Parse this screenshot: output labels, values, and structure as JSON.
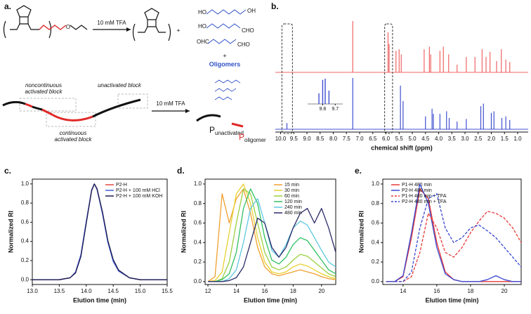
{
  "panel_a": {
    "label": "a.",
    "reagent_top": "10 mM TFA",
    "plus_1": "+",
    "monomer_o": "O",
    "products": [
      {
        "left": "HO",
        "right": "OH"
      },
      {
        "left": "HO",
        "right": "CHO"
      },
      {
        "left": "OHC",
        "right": "CHO"
      }
    ],
    "plus_2": "+",
    "oligomers": "Oligomers",
    "noncontinuous": [
      "noncontinuous",
      "activated block"
    ],
    "unactivated": "unactivated block",
    "continuous": [
      "continuous",
      "activated block"
    ],
    "reagent_bottom": "10 mM TFA",
    "p_unactivated": {
      "symbol": "P",
      "subscript": "unactivated"
    },
    "p_oligomer": {
      "symbol": "P",
      "subscript": "oligomer"
    }
  },
  "chart_data": [
    {
      "type": "spectrum",
      "label": "b.",
      "xlabel": "chemical shift (ppm)",
      "xlim": [
        10.2,
        0.6
      ],
      "xticks": [
        {
          "value": 10,
          "label": "10.0"
        },
        9.5,
        {
          "value": 9,
          "label": "9.0"
        },
        8.5,
        {
          "value": 8,
          "label": "8.0"
        },
        7.5,
        {
          "value": 7,
          "label": "7.0"
        },
        6.5,
        {
          "value": 6,
          "label": "6.0"
        },
        5.5,
        {
          "value": 5,
          "label": "5.0"
        },
        4.5,
        {
          "value": 4,
          "label": "4.0"
        },
        3.5,
        {
          "value": 3,
          "label": "3.0"
        },
        2.5,
        {
          "value": 2,
          "label": "2.0"
        },
        1.5,
        {
          "value": 1,
          "label": "1.0"
        }
      ],
      "ylim": [
        0,
        1
      ],
      "series": [
        {
          "color": "#f06464",
          "x": [
            7.26,
            5.92,
            5.88,
            5.62,
            5.5,
            5.42,
            4.55,
            4.35,
            4.3,
            3.95,
            3.82,
            3.62,
            3.3,
            2.95,
            2.62,
            2.35,
            2.2,
            2.05,
            1.8,
            1.62,
            1.45,
            1.3
          ],
          "values": [
            1.0,
            0.78,
            0.55,
            0.42,
            0.45,
            0.35,
            0.45,
            0.5,
            0.35,
            0.42,
            0.5,
            0.35,
            0.15,
            0.3,
            0.3,
            0.45,
            0.3,
            0.4,
            0.22,
            0.45,
            0.25,
            0.2
          ]
        },
        {
          "color": "#4050d0",
          "x": [
            9.76,
            7.26,
            5.45,
            5.35,
            4.5,
            4.25,
            4.2,
            3.95,
            3.7,
            3.6,
            3.3,
            2.95,
            2.4,
            2.3,
            2.0,
            1.9,
            1.6,
            1.45,
            1.3
          ],
          "values": [
            0.12,
            1.0,
            0.85,
            0.55,
            0.25,
            0.4,
            0.3,
            0.3,
            0.35,
            0.22,
            0.15,
            0.2,
            0.45,
            0.5,
            0.32,
            0.35,
            0.22,
            0.25,
            0.18
          ]
        }
      ],
      "inset": {
        "xlim": [
          9.92,
          9.64
        ],
        "xticks": [
          9.8,
          9.7
        ],
        "ylim": [
          0,
          1
        ],
        "color": "#4050d0",
        "x": [
          9.83,
          9.8,
          9.78,
          9.75
        ],
        "values": [
          0.4,
          0.9,
          0.95,
          0.5
        ]
      }
    },
    {
      "type": "line",
      "label": "c.",
      "xlabel": "Elution time (min)",
      "ylabel": "Normalized RI",
      "xlim": [
        13.0,
        15.5
      ],
      "xticks": [
        {
          "value": 13,
          "label": "13.0"
        },
        13.5,
        {
          "value": 14,
          "label": "14.0"
        },
        14.5,
        {
          "value": 15,
          "label": "15.0"
        },
        15.5
      ],
      "ylim": [
        -0.05,
        1.05
      ],
      "yticks": [
        {
          "value": 0,
          "label": "0.0"
        },
        0.2,
        0.4,
        0.6,
        0.8,
        {
          "value": 1,
          "label": "1.0"
        }
      ],
      "legend": "upper right",
      "x": [
        13.0,
        13.5,
        13.7,
        13.8,
        13.9,
        14.0,
        14.1,
        14.15,
        14.2,
        14.3,
        14.4,
        14.5,
        14.6,
        14.8,
        15.0,
        15.5
      ],
      "series": [
        {
          "name": "P2-H",
          "color": "#e84848",
          "values": [
            0,
            0,
            0.02,
            0.07,
            0.25,
            0.6,
            0.93,
            1.0,
            0.95,
            0.7,
            0.4,
            0.2,
            0.09,
            0.02,
            0,
            0
          ]
        },
        {
          "name": "P2-H + 100 mM HCl",
          "color": "#4060e0",
          "values": [
            0,
            0,
            0.02,
            0.08,
            0.26,
            0.61,
            0.94,
            1.0,
            0.94,
            0.69,
            0.39,
            0.19,
            0.09,
            0.02,
            0,
            0
          ]
        },
        {
          "name": "P2-H + 100 mM KOH",
          "color": "#1c1c50",
          "values": [
            0,
            0,
            0.02,
            0.07,
            0.24,
            0.59,
            0.93,
            1.0,
            0.95,
            0.71,
            0.41,
            0.21,
            0.1,
            0.02,
            0,
            0
          ]
        }
      ]
    },
    {
      "type": "line",
      "label": "d.",
      "xlabel": "Elution time (min)",
      "ylabel": "Normalized RI",
      "xlim": [
        11.8,
        21
      ],
      "xticks": [
        12,
        14,
        16,
        18,
        20
      ],
      "ylim": [
        -0.03,
        1.05
      ],
      "yticks": [
        {
          "value": 0,
          "label": "0.0"
        },
        0.2,
        0.4,
        0.6,
        0.8,
        {
          "value": 1,
          "label": "1.0"
        }
      ],
      "legend": "upper right",
      "x": [
        12,
        12.5,
        13,
        13.5,
        14,
        14.5,
        15,
        15.5,
        16,
        16.5,
        17,
        17.5,
        18,
        18.5,
        19,
        19.5,
        20,
        20.5,
        21
      ],
      "series": [
        {
          "name": "15 min",
          "color": "#f0a030",
          "values": [
            0,
            0.05,
            0.9,
            0.6,
            0.85,
            0.95,
            0.7,
            0.35,
            0.15,
            0.08,
            0.06,
            0.08,
            0.1,
            0.12,
            0.1,
            0.08,
            0.05,
            0.03,
            0.02
          ]
        },
        {
          "name": "30 min",
          "color": "#e8d030",
          "values": [
            0,
            0.01,
            0.1,
            0.5,
            0.9,
            1.0,
            0.8,
            0.45,
            0.2,
            0.1,
            0.08,
            0.1,
            0.15,
            0.18,
            0.16,
            0.12,
            0.08,
            0.05,
            0.03
          ]
        },
        {
          "name": "60 min",
          "color": "#9ad040",
          "values": [
            0,
            0,
            0.03,
            0.2,
            0.6,
            0.95,
            0.9,
            0.6,
            0.3,
            0.15,
            0.12,
            0.15,
            0.22,
            0.28,
            0.26,
            0.2,
            0.14,
            0.08,
            0.05
          ]
        },
        {
          "name": "120 min",
          "color": "#30c060",
          "values": [
            0,
            0,
            0.02,
            0.08,
            0.3,
            0.75,
            0.95,
            0.8,
            0.45,
            0.22,
            0.18,
            0.25,
            0.38,
            0.45,
            0.42,
            0.32,
            0.22,
            0.12,
            0.08
          ]
        },
        {
          "name": "240 min",
          "color": "#60c8e0",
          "values": [
            0,
            0,
            0,
            0.03,
            0.12,
            0.4,
            0.75,
            0.85,
            0.6,
            0.32,
            0.25,
            0.38,
            0.55,
            0.62,
            0.58,
            0.45,
            0.32,
            0.2,
            0.15
          ]
        },
        {
          "name": "480 min",
          "color": "#2a2a68",
          "values": [
            0,
            0,
            0,
            0.01,
            0.04,
            0.15,
            0.4,
            0.65,
            0.6,
            0.35,
            0.25,
            0.35,
            0.55,
            0.7,
            0.75,
            0.6,
            0.75,
            0.55,
            0.3
          ]
        }
      ]
    },
    {
      "type": "line",
      "label": "e.",
      "xlabel": "Elution time (min)",
      "ylabel": "Normalized RI",
      "xlim": [
        12.8,
        21
      ],
      "xticks": [
        14,
        16,
        18,
        20
      ],
      "ylim": [
        -0.03,
        1.05
      ],
      "yticks": [
        {
          "value": 0,
          "label": "0.0"
        },
        0.2,
        0.4,
        0.6,
        0.8,
        {
          "value": 1,
          "label": "1.0"
        }
      ],
      "legend": "upper left",
      "x": [
        13,
        13.5,
        14,
        14.5,
        15,
        15.5,
        16,
        16.5,
        17,
        17.5,
        18,
        18.5,
        19,
        19.5,
        20,
        20.5,
        21
      ],
      "series": [
        {
          "name": "P1-H 480 min",
          "color": "#e83838",
          "dash": false,
          "values": [
            0,
            0,
            0.05,
            0.45,
            0.95,
            0.85,
            0.4,
            0.1,
            0.02,
            0,
            0,
            0,
            0,
            0,
            0,
            0,
            0
          ]
        },
        {
          "name": "P2-H 480 min",
          "color": "#3848d0",
          "dash": false,
          "values": [
            0,
            0,
            0.06,
            0.5,
            1.0,
            0.8,
            0.35,
            0.08,
            0.02,
            0,
            0,
            0,
            0.02,
            0.06,
            0.02,
            0,
            0
          ]
        },
        {
          "name": "P1-H 480 min + TFA",
          "color": "#e83838",
          "dash": true,
          "values": [
            0,
            0,
            0,
            0.05,
            0.3,
            0.7,
            0.55,
            0.3,
            0.25,
            0.35,
            0.5,
            0.62,
            0.72,
            0.7,
            0.65,
            0.55,
            0.4
          ]
        },
        {
          "name": "P2-H 480 min + TFA",
          "color": "#3848d0",
          "dash": true,
          "values": [
            0,
            0,
            0,
            0.1,
            0.55,
            0.85,
            0.9,
            0.55,
            0.4,
            0.45,
            0.55,
            0.58,
            0.52,
            0.45,
            0.35,
            0.25,
            0.15
          ]
        }
      ]
    }
  ]
}
